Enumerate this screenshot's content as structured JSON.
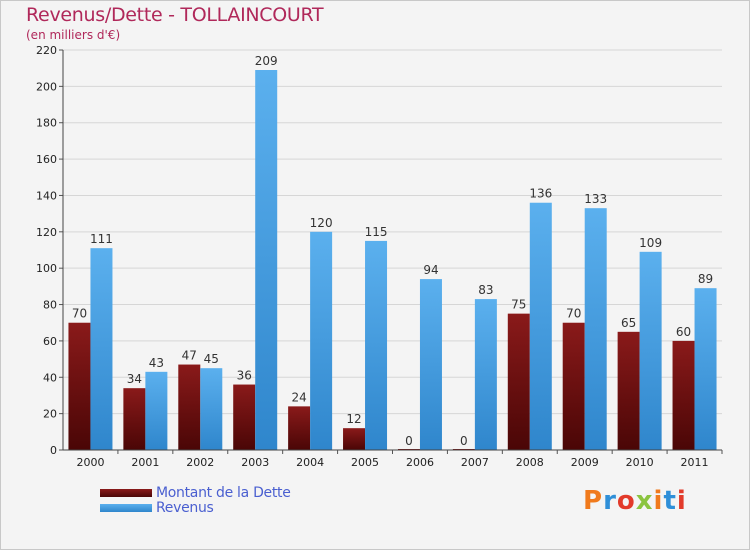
{
  "title": "Revenus/Dette - TOLLAINCOURT",
  "subtitle": "(en milliers d'€)",
  "chart_data": {
    "type": "bar",
    "categories": [
      "2000",
      "2001",
      "2002",
      "2003",
      "2004",
      "2005",
      "2006",
      "2007",
      "2008",
      "2009",
      "2010",
      "2011"
    ],
    "series": [
      {
        "name": "Montant de la Dette",
        "color": "#7a0e0e",
        "values": [
          70,
          34,
          47,
          36,
          24,
          12,
          0,
          0,
          75,
          70,
          65,
          60
        ]
      },
      {
        "name": "Revenus",
        "color": "#4aa3e6",
        "values": [
          111,
          43,
          45,
          209,
          120,
          115,
          94,
          83,
          136,
          133,
          109,
          89
        ]
      }
    ],
    "ylim": [
      0,
      220
    ],
    "yticks": [
      0,
      20,
      40,
      60,
      80,
      100,
      120,
      140,
      160,
      180,
      200,
      220
    ],
    "grid": true,
    "legend_position": "bottom-left"
  },
  "legend": {
    "dette_label": "Montant de la Dette",
    "revenus_label": "Revenus"
  },
  "logo": {
    "letters": [
      "P",
      "r",
      "o",
      "x",
      "i",
      "t",
      "i"
    ],
    "colors": [
      "#f07a1c",
      "#2f8fd8",
      "#e23a2a",
      "#8bc43f",
      "#f07a1c",
      "#2f8fd8",
      "#e23a2a"
    ]
  }
}
